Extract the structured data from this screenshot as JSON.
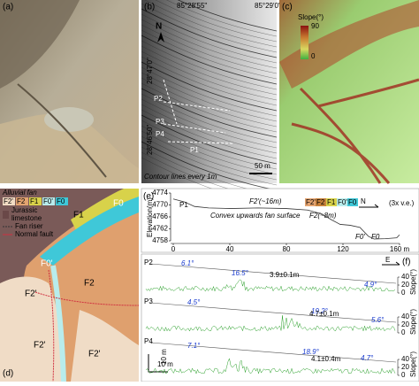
{
  "panel_a": {
    "label": "(a)"
  },
  "panel_b": {
    "label": "(b)",
    "north": "N",
    "lon_ticks": [
      "85°28'55\"",
      "85°29'0\""
    ],
    "lat_ticks": [
      "28°47'0\"",
      "28°46'50\""
    ],
    "profiles": [
      "P2",
      "P3",
      "P4",
      "P1"
    ],
    "caption": "Contour lines every 1m",
    "scale": "50 m"
  },
  "panel_c": {
    "label": "(c)",
    "legend_title": "Slope(°)",
    "legend_max": "90",
    "legend_min": "0"
  },
  "panel_d": {
    "label": "(d)",
    "legend_title": "Alluvial fan",
    "units": [
      "F2'",
      "F2",
      "F1",
      "F0'",
      "F0"
    ],
    "unit_colors": [
      "#f3dcc4",
      "#e3a370",
      "#d8d24a",
      "#b8ecec",
      "#3fc8d8"
    ],
    "limestone": [
      "Jurassic",
      "limestone"
    ],
    "fan_riser": "Fan riser",
    "normal_fault": "Normal fault",
    "map_labels": [
      "F0",
      "F1",
      "F0'",
      "F2",
      "F2'",
      "F2'",
      "F2'"
    ]
  },
  "panel_e": {
    "label": "(e)",
    "type": "line",
    "profile": "P1",
    "ylabel": "Elevation(m)",
    "ve": "(3x v.e.)",
    "north": "N",
    "legend": [
      "F2'",
      "F2",
      "F1",
      "F0'",
      "F0"
    ],
    "legend_colors": [
      "#e3a370",
      "#c8823c",
      "#d8d24a",
      "#b8ecec",
      "#3fc8d8"
    ],
    "annotations": [
      "F2'(~16m)",
      "Convex upwards fan surface",
      "F2(~8m)",
      "F0'",
      "F0"
    ],
    "xlim": [
      0,
      160
    ],
    "ylim": [
      4758,
      4774
    ],
    "xticks": [
      0,
      40,
      80,
      {
        "value": 120,
        "label": "120"
      },
      {
        "value": 160,
        "label": "160 m"
      }
    ],
    "yticks": [
      4758,
      4762,
      4766,
      4770,
      4774
    ],
    "x": [
      0,
      8,
      15,
      25,
      40,
      60,
      80,
      95,
      105,
      112,
      118,
      125,
      132,
      138,
      142,
      150,
      158,
      160
    ],
    "values": [
      4772,
      4771,
      4769.5,
      4769,
      4768.8,
      4769,
      4768.8,
      4768.3,
      4767,
      4765,
      4763.5,
      4763.2,
      4762.5,
      4759.5,
      4758.6,
      4758.7,
      4759,
      4760
    ]
  },
  "panel_f": {
    "label": "(f)",
    "east": "E",
    "slope_ticks": [
      0,
      20,
      40
    ],
    "slope_label": "Slope(°)",
    "scale": "10 m",
    "profiles": [
      {
        "name": "P2",
        "angles": [
          "6.1°",
          "16.5°",
          "4.9°"
        ],
        "offset": "3.9±0.1m"
      },
      {
        "name": "P3",
        "angles": [
          "4.5°",
          "19.2°",
          "5.6°"
        ],
        "offset": "4.7±0.1m"
      },
      {
        "name": "P4",
        "angles": [
          "7.1°",
          "18.9°",
          "4.7°"
        ],
        "offset": "4.1±0.4m"
      }
    ]
  }
}
